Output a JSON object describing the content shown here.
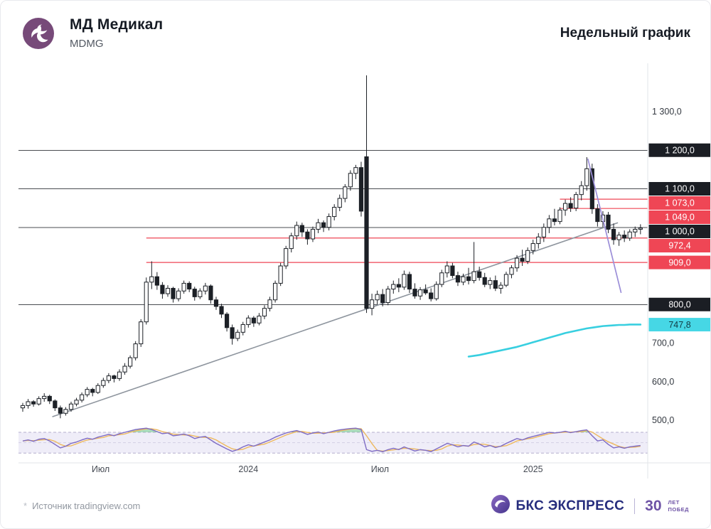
{
  "header": {
    "title": "МД Медикал",
    "ticker": "MDMG",
    "period_label": "Недельный график"
  },
  "footer": {
    "source": {
      "star": "*",
      "text": "Источник tradingview.com"
    },
    "brand": {
      "name": "БКС ЭКСПРЕСС",
      "anniversary_number": "30",
      "anniversary_top": "ЛЕТ",
      "anniversary_bottom": "ПОБЕД"
    }
  },
  "colors": {
    "accent_red": "#ef4655",
    "level_black": "#1c2026",
    "cyan": "#38cfe0",
    "trend_gray": "#8e959e",
    "trend_purple": "#9b8ed8",
    "osc_purple": "#7e6bc4",
    "osc_orange": "#eeb95e",
    "osc_band_fill": "#7e6bc4",
    "osc_green": "#58b97c",
    "badge_dark_bg": "#1b1e24",
    "badge_red_bg": "#ef4655",
    "badge_cyan_bg": "#46d7e5",
    "brand_purple": "#774a79",
    "bcs_blue": "#262d7d",
    "bcs_purple": "#6d52a5",
    "axis_gray": "#e2e4e8",
    "tick_text": "#343941",
    "x_label_text": "#464b54"
  },
  "chart_data": {
    "type": "candlestick",
    "interval": "weekly",
    "title": "МД Медикал (MDMG), недельный график",
    "ylim": [
      450,
      1400
    ],
    "price_axis": [
      {
        "label": "1 300,0",
        "price": 1300,
        "style": "tick"
      },
      {
        "label": "1 200,0",
        "price": 1200,
        "style": "level"
      },
      {
        "label": "1 100,0",
        "price": 1100,
        "style": "level"
      },
      {
        "label": "1 073,0",
        "price": 1073,
        "style": "resistance",
        "from_index": 100
      },
      {
        "label": "1 049,0",
        "price": 1049,
        "style": "resistance",
        "from_index": 100
      },
      {
        "label": "1 000,0",
        "price": 1000,
        "style": "level"
      },
      {
        "label": "972,4",
        "price": 972.4,
        "style": "resistance",
        "from_index": 23
      },
      {
        "label": "909,0",
        "price": 909,
        "style": "resistance",
        "from_index": 23
      },
      {
        "label": "800,0",
        "price": 800,
        "style": "level"
      },
      {
        "label": "747,8",
        "price": 747.8,
        "style": "ma"
      },
      {
        "label": "700,0",
        "price": 700,
        "style": "tick"
      },
      {
        "label": "600,0",
        "price": 600,
        "style": "tick"
      },
      {
        "label": "500,0",
        "price": 500,
        "style": "tick"
      }
    ],
    "x_axis_labels": [
      {
        "label": "Июл",
        "index": 14.5
      },
      {
        "label": "2024",
        "index": 42
      },
      {
        "label": "Июл",
        "index": 66.5
      },
      {
        "label": "2025",
        "index": 95
      }
    ],
    "candles": [
      [
        532,
        545,
        522,
        538
      ],
      [
        538,
        555,
        530,
        548
      ],
      [
        548,
        552,
        535,
        542
      ],
      [
        542,
        562,
        538,
        556
      ],
      [
        556,
        570,
        548,
        562
      ],
      [
        562,
        566,
        542,
        550
      ],
      [
        550,
        554,
        524,
        532
      ],
      [
        532,
        538,
        505,
        518
      ],
      [
        518,
        534,
        512,
        528
      ],
      [
        528,
        548,
        522,
        542
      ],
      [
        542,
        558,
        536,
        552
      ],
      [
        552,
        572,
        546,
        566
      ],
      [
        566,
        586,
        560,
        580
      ],
      [
        580,
        584,
        562,
        572
      ],
      [
        572,
        596,
        568,
        590
      ],
      [
        590,
        610,
        584,
        603
      ],
      [
        603,
        622,
        596,
        615
      ],
      [
        615,
        618,
        598,
        608
      ],
      [
        608,
        632,
        602,
        625
      ],
      [
        625,
        648,
        618,
        640
      ],
      [
        640,
        668,
        634,
        662
      ],
      [
        662,
        705,
        655,
        698
      ],
      [
        698,
        762,
        690,
        755
      ],
      [
        755,
        870,
        748,
        858
      ],
      [
        858,
        912,
        840,
        872
      ],
      [
        872,
        884,
        838,
        850
      ],
      [
        850,
        858,
        815,
        828
      ],
      [
        828,
        850,
        820,
        842
      ],
      [
        842,
        846,
        805,
        815
      ],
      [
        815,
        842,
        808,
        835
      ],
      [
        835,
        862,
        828,
        855
      ],
      [
        855,
        860,
        832,
        840
      ],
      [
        840,
        846,
        810,
        820
      ],
      [
        820,
        842,
        814,
        835
      ],
      [
        835,
        856,
        826,
        848
      ],
      [
        848,
        852,
        802,
        812
      ],
      [
        812,
        820,
        786,
        795
      ],
      [
        795,
        802,
        765,
        775
      ],
      [
        775,
        780,
        730,
        740
      ],
      [
        740,
        748,
        696,
        712
      ],
      [
        712,
        735,
        705,
        728
      ],
      [
        728,
        755,
        720,
        748
      ],
      [
        748,
        772,
        740,
        765
      ],
      [
        765,
        770,
        742,
        752
      ],
      [
        752,
        778,
        746,
        770
      ],
      [
        770,
        798,
        762,
        790
      ],
      [
        790,
        820,
        782,
        812
      ],
      [
        812,
        862,
        805,
        855
      ],
      [
        855,
        908,
        848,
        900
      ],
      [
        900,
        952,
        892,
        945
      ],
      [
        945,
        986,
        935,
        978
      ],
      [
        978,
        1015,
        968,
        1005
      ],
      [
        1005,
        1012,
        975,
        988
      ],
      [
        988,
        995,
        955,
        970
      ],
      [
        970,
        1002,
        962,
        995
      ],
      [
        995,
        1022,
        985,
        1012
      ],
      [
        1012,
        1018,
        988,
        1000
      ],
      [
        1000,
        1036,
        992,
        1028
      ],
      [
        1028,
        1060,
        1018,
        1052
      ],
      [
        1052,
        1085,
        1042,
        1075
      ],
      [
        1075,
        1112,
        1065,
        1105
      ],
      [
        1105,
        1148,
        1095,
        1140
      ],
      [
        1140,
        1162,
        1125,
        1155
      ],
      [
        1155,
        1170,
        1028,
        1042
      ],
      [
        1183,
        1394,
        778,
        790
      ],
      [
        790,
        828,
        772,
        812
      ],
      [
        812,
        836,
        800,
        826
      ],
      [
        826,
        840,
        795,
        805
      ],
      [
        805,
        848,
        798,
        840
      ],
      [
        840,
        862,
        828,
        852
      ],
      [
        852,
        868,
        832,
        845
      ],
      [
        845,
        888,
        838,
        878
      ],
      [
        878,
        885,
        830,
        840
      ],
      [
        840,
        855,
        815,
        822
      ],
      [
        822,
        845,
        812,
        838
      ],
      [
        838,
        852,
        825,
        830
      ],
      [
        830,
        842,
        808,
        815
      ],
      [
        815,
        860,
        810,
        852
      ],
      [
        852,
        890,
        845,
        882
      ],
      [
        882,
        912,
        870,
        900
      ],
      [
        900,
        908,
        868,
        875
      ],
      [
        875,
        885,
        848,
        858
      ],
      [
        858,
        880,
        850,
        872
      ],
      [
        872,
        895,
        852,
        862
      ],
      [
        862,
        962,
        855,
        885
      ],
      [
        885,
        898,
        862,
        870
      ],
      [
        870,
        882,
        845,
        852
      ],
      [
        852,
        870,
        840,
        862
      ],
      [
        862,
        875,
        835,
        842
      ],
      [
        842,
        858,
        828,
        850
      ],
      [
        850,
        885,
        845,
        878
      ],
      [
        878,
        902,
        868,
        895
      ],
      [
        895,
        928,
        885,
        920
      ],
      [
        920,
        942,
        900,
        912
      ],
      [
        912,
        948,
        905,
        940
      ],
      [
        940,
        968,
        930,
        958
      ],
      [
        958,
        985,
        945,
        975
      ],
      [
        975,
        1010,
        962,
        1000
      ],
      [
        1000,
        1032,
        985,
        1022
      ],
      [
        1022,
        1048,
        1005,
        1015
      ],
      [
        1015,
        1052,
        1008,
        1045
      ],
      [
        1045,
        1072,
        1030,
        1062
      ],
      [
        1062,
        1078,
        1040,
        1050
      ],
      [
        1050,
        1092,
        1042,
        1085
      ],
      [
        1085,
        1120,
        1070,
        1108
      ],
      [
        1108,
        1182,
        1095,
        1152
      ],
      [
        1152,
        1165,
        1035,
        1048
      ],
      [
        1048,
        1060,
        1002,
        1015
      ],
      [
        1015,
        1042,
        1000,
        1032
      ],
      [
        1032,
        1040,
        985,
        995
      ],
      [
        995,
        1010,
        955,
        968
      ],
      [
        968,
        988,
        952,
        980
      ],
      [
        980,
        992,
        962,
        972
      ],
      [
        972,
        995,
        965,
        988
      ],
      [
        988,
        1002,
        975,
        995
      ],
      [
        995,
        1008,
        982,
        998
      ]
    ],
    "ma_cyan": {
      "start_index": 83,
      "last_value_label": "747,8",
      "values": [
        665,
        667,
        669,
        672,
        675,
        678,
        681,
        684,
        687,
        690,
        694,
        698,
        702,
        706,
        710,
        714,
        718,
        722,
        726,
        729,
        732,
        735,
        738,
        740,
        742,
        744,
        745,
        746,
        747,
        747,
        748,
        748,
        748
      ]
    },
    "trendlines": [
      {
        "name": "rising-support-trendline",
        "color": "gray",
        "from": {
          "index": 5.5,
          "price": 509
        },
        "to": {
          "index": 110.8,
          "price": 1012
        }
      },
      {
        "name": "downtrend-line",
        "color": "purple",
        "from": {
          "index": 105.2,
          "price": 1178
        },
        "to": {
          "index": 111.4,
          "price": 830
        }
      }
    ],
    "oscillator": {
      "upper_band": 80,
      "lower_band": 20,
      "signal_smoothing": 3,
      "values": [
        55,
        58,
        54,
        60,
        62,
        55,
        45,
        35,
        40,
        48,
        52,
        58,
        63,
        60,
        66,
        70,
        74,
        70,
        76,
        80,
        84,
        88,
        90,
        92,
        88,
        82,
        76,
        78,
        70,
        72,
        75,
        70,
        62,
        66,
        68,
        58,
        48,
        40,
        32,
        25,
        30,
        38,
        44,
        40,
        46,
        52,
        58,
        66,
        72,
        78,
        82,
        85,
        80,
        74,
        78,
        81,
        76,
        80,
        84,
        87,
        89,
        91,
        92,
        88,
        30,
        25,
        28,
        24,
        30,
        34,
        30,
        38,
        32,
        26,
        30,
        28,
        24,
        32,
        40,
        48,
        44,
        38,
        42,
        40,
        52,
        46,
        38,
        42,
        36,
        40,
        48,
        55,
        62,
        58,
        64,
        68,
        72,
        76,
        80,
        78,
        80,
        83,
        79,
        82,
        85,
        87,
        70,
        55,
        58,
        45,
        35,
        38,
        34,
        38,
        40,
        42
      ]
    }
  }
}
